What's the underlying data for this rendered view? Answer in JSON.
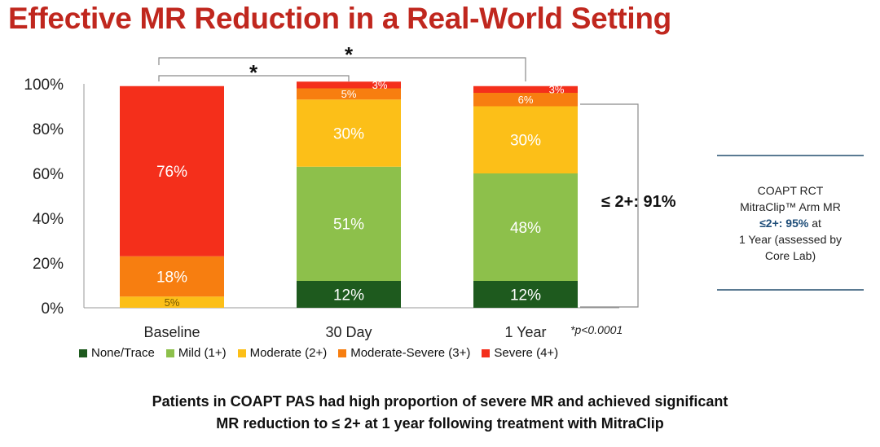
{
  "title": "Effective MR Reduction in a Real-World Setting",
  "chart_data": {
    "type": "bar",
    "stacked": true,
    "categories": [
      "Baseline",
      "30 Day",
      "1 Year"
    ],
    "series": [
      {
        "name": "None/Trace",
        "color": "#1e5a1e",
        "values": [
          0,
          12,
          12
        ],
        "labels": [
          "",
          "12%",
          "12%"
        ]
      },
      {
        "name": "Mild (1+)",
        "color": "#8dc04b",
        "values": [
          0,
          51,
          48
        ],
        "labels": [
          "",
          "51%",
          "48%"
        ]
      },
      {
        "name": "Moderate (2+)",
        "color": "#fcbf18",
        "values": [
          5,
          30,
          30
        ],
        "labels": [
          "5%",
          "30%",
          "30%"
        ]
      },
      {
        "name": "Moderate-Severe (3+)",
        "color": "#f77e10",
        "values": [
          18,
          5,
          6
        ],
        "labels": [
          "18%",
          "5%",
          "6%"
        ]
      },
      {
        "name": "Severe (4+)",
        "color": "#f42f1b",
        "values": [
          76,
          3,
          3
        ],
        "labels": [
          "76%",
          "3%",
          "3%"
        ]
      }
    ],
    "ylim": [
      0,
      100
    ],
    "yticks": [
      "0%",
      "20%",
      "40%",
      "60%",
      "80%",
      "100%"
    ],
    "ytick_values": [
      0,
      20,
      40,
      60,
      80,
      100
    ],
    "legend": "bottom",
    "grid": false,
    "annotations": {
      "star_30day": "*",
      "star_1year": "*",
      "bracket_1year": "≤ 2+: 91%",
      "pvalue": "*p<0.0001"
    }
  },
  "info_box": {
    "line1": "COAPT RCT",
    "line2": "MitraClip™ Arm MR",
    "highlight": "≤2+: 95%",
    "line3_suffix": " at",
    "line4": "1 Year (assessed by",
    "line5": "Core Lab)"
  },
  "footer": {
    "line1": "Patients in COAPT PAS had high proportion of severe MR and achieved significant",
    "line2": "MR reduction to ≤ 2+ at 1 year following treatment with MitraClip"
  }
}
